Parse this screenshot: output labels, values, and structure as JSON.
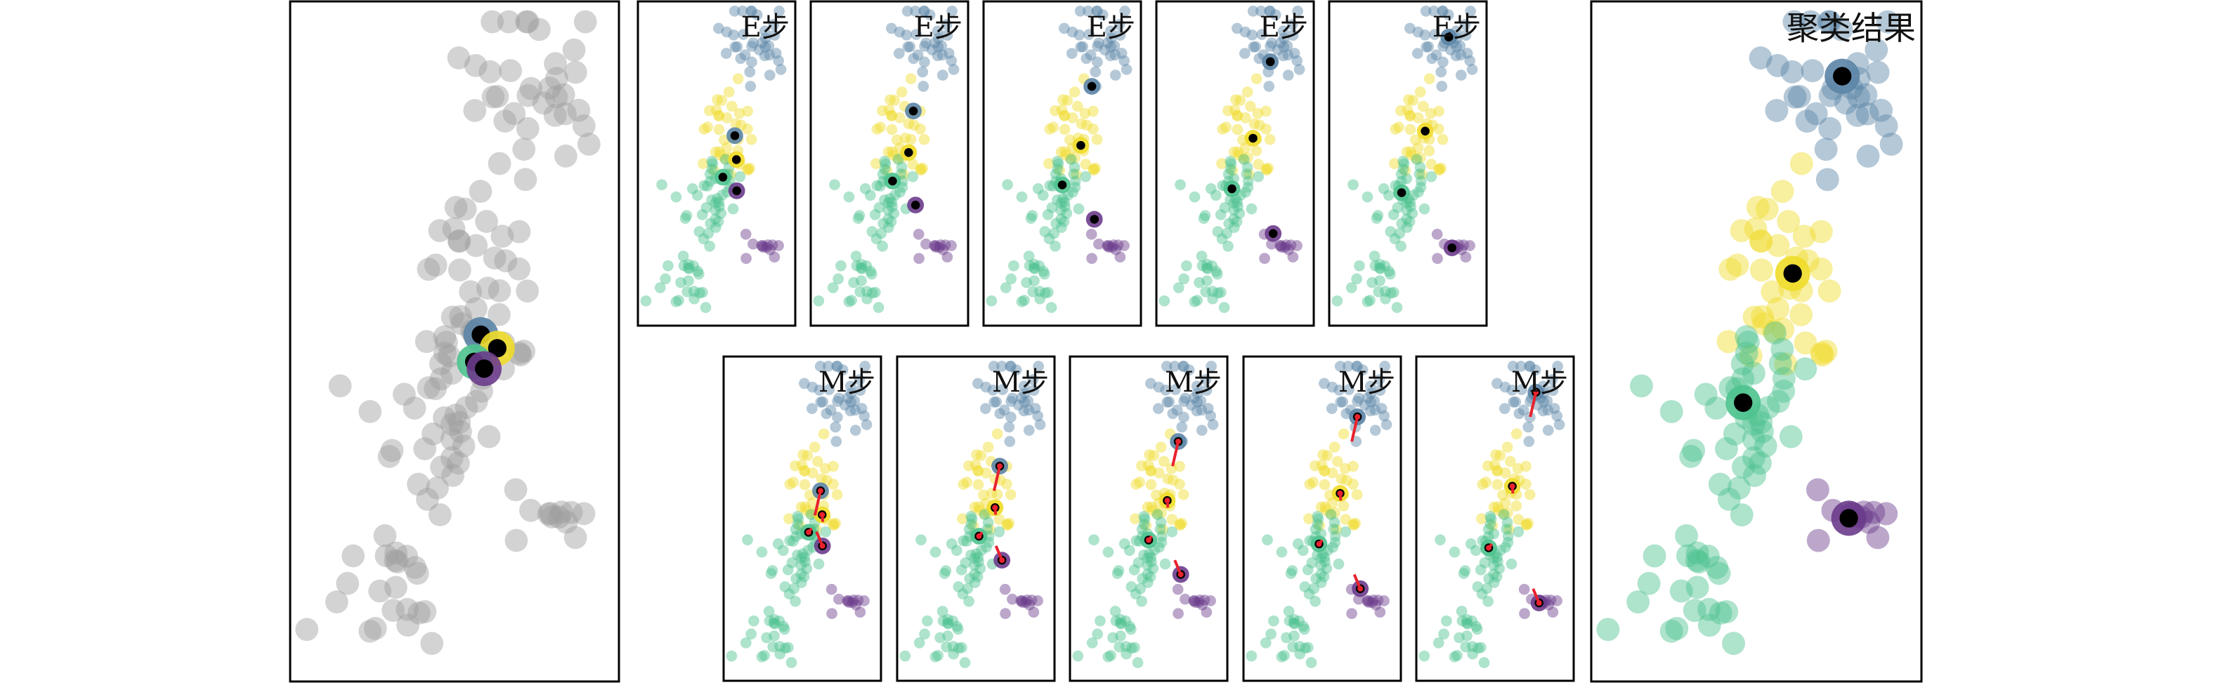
{
  "figure": {
    "initial_panel": {
      "label": ""
    },
    "e_step_label": "E步",
    "m_step_label": "M步",
    "result_label": "聚类结果",
    "e_steps": [
      {
        "label": "E步",
        "index": 1
      },
      {
        "label": "E步",
        "index": 2
      },
      {
        "label": "E步",
        "index": 3
      },
      {
        "label": "E步",
        "index": 4
      },
      {
        "label": "E步",
        "index": 5
      }
    ],
    "m_steps": [
      {
        "label": "M步",
        "index": 1
      },
      {
        "label": "M步",
        "index": 2
      },
      {
        "label": "M步",
        "index": 3
      },
      {
        "label": "M步",
        "index": 4
      },
      {
        "label": "M步",
        "index": 5
      }
    ]
  },
  "colors": {
    "frame": "#000000",
    "unassigned": "#9e9e9e",
    "cluster_blue": "#5b84a6",
    "cluster_yellow": "#f0dc2a",
    "cluster_green": "#4cc28e",
    "cluster_purple": "#6b3c8c",
    "centroid": "#000000",
    "update_arrow": "#e8222e"
  },
  "clusters": [
    {
      "name_hint": "blue-cluster",
      "color": "#5b84a6"
    },
    {
      "name_hint": "yellow-cluster",
      "color": "#f0dc2a"
    },
    {
      "name_hint": "green-cluster",
      "color": "#4cc28e"
    },
    {
      "name_hint": "purple-cluster",
      "color": "#6b3c8c"
    }
  ]
}
